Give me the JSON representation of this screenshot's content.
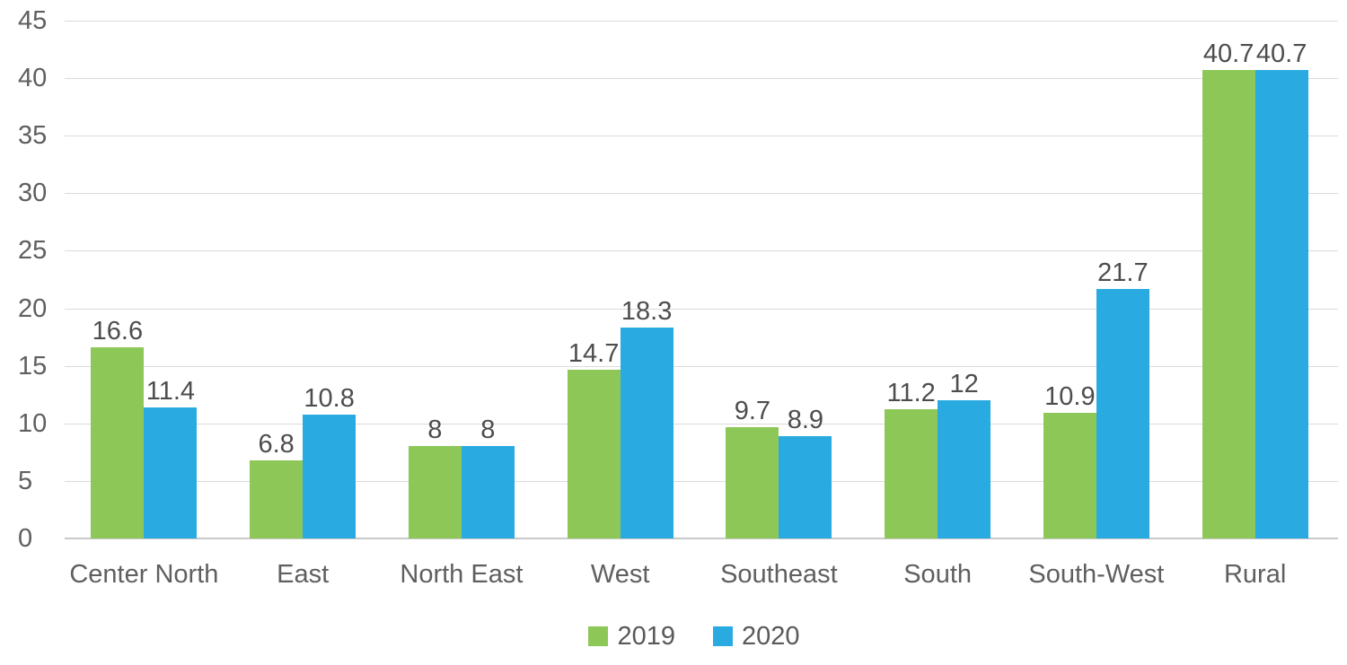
{
  "chart_data": {
    "type": "bar",
    "title": "",
    "xlabel": "",
    "ylabel": "",
    "categories": [
      "Center North",
      "East",
      "North East",
      "West",
      "Southeast",
      "South",
      "South-West",
      "Rural"
    ],
    "series": [
      {
        "name": "2019",
        "color": "#8DC757",
        "values": [
          16.6,
          6.8,
          8,
          14.7,
          9.7,
          11.2,
          10.9,
          40.7
        ]
      },
      {
        "name": "2020",
        "color": "#29ABE2",
        "values": [
          11.4,
          10.8,
          8,
          18.3,
          8.9,
          12,
          21.7,
          40.7
        ]
      }
    ],
    "data_labels": [
      [
        "16.6",
        "6.8",
        "8",
        "14.7",
        "9.7",
        "11.2",
        "10.9",
        "40.7"
      ],
      [
        "11.4",
        "10.8",
        "8",
        "18.3",
        "8.9",
        "12",
        "21.7",
        "40.7"
      ]
    ],
    "ylim": [
      0,
      45
    ],
    "yticks": [
      0,
      5,
      10,
      15,
      20,
      25,
      30,
      35,
      40,
      45
    ],
    "grid": true,
    "legend_position": "bottom",
    "legend_labels": [
      "2019",
      "2020"
    ],
    "colors": {
      "series_2019": "#8DC757",
      "series_2020": "#29ABE2",
      "gridline": "#DBDBDB",
      "axis_line": "#C9C9C9",
      "tick_text": "#5F5F5F",
      "label_text": "#4D4D4D"
    }
  }
}
